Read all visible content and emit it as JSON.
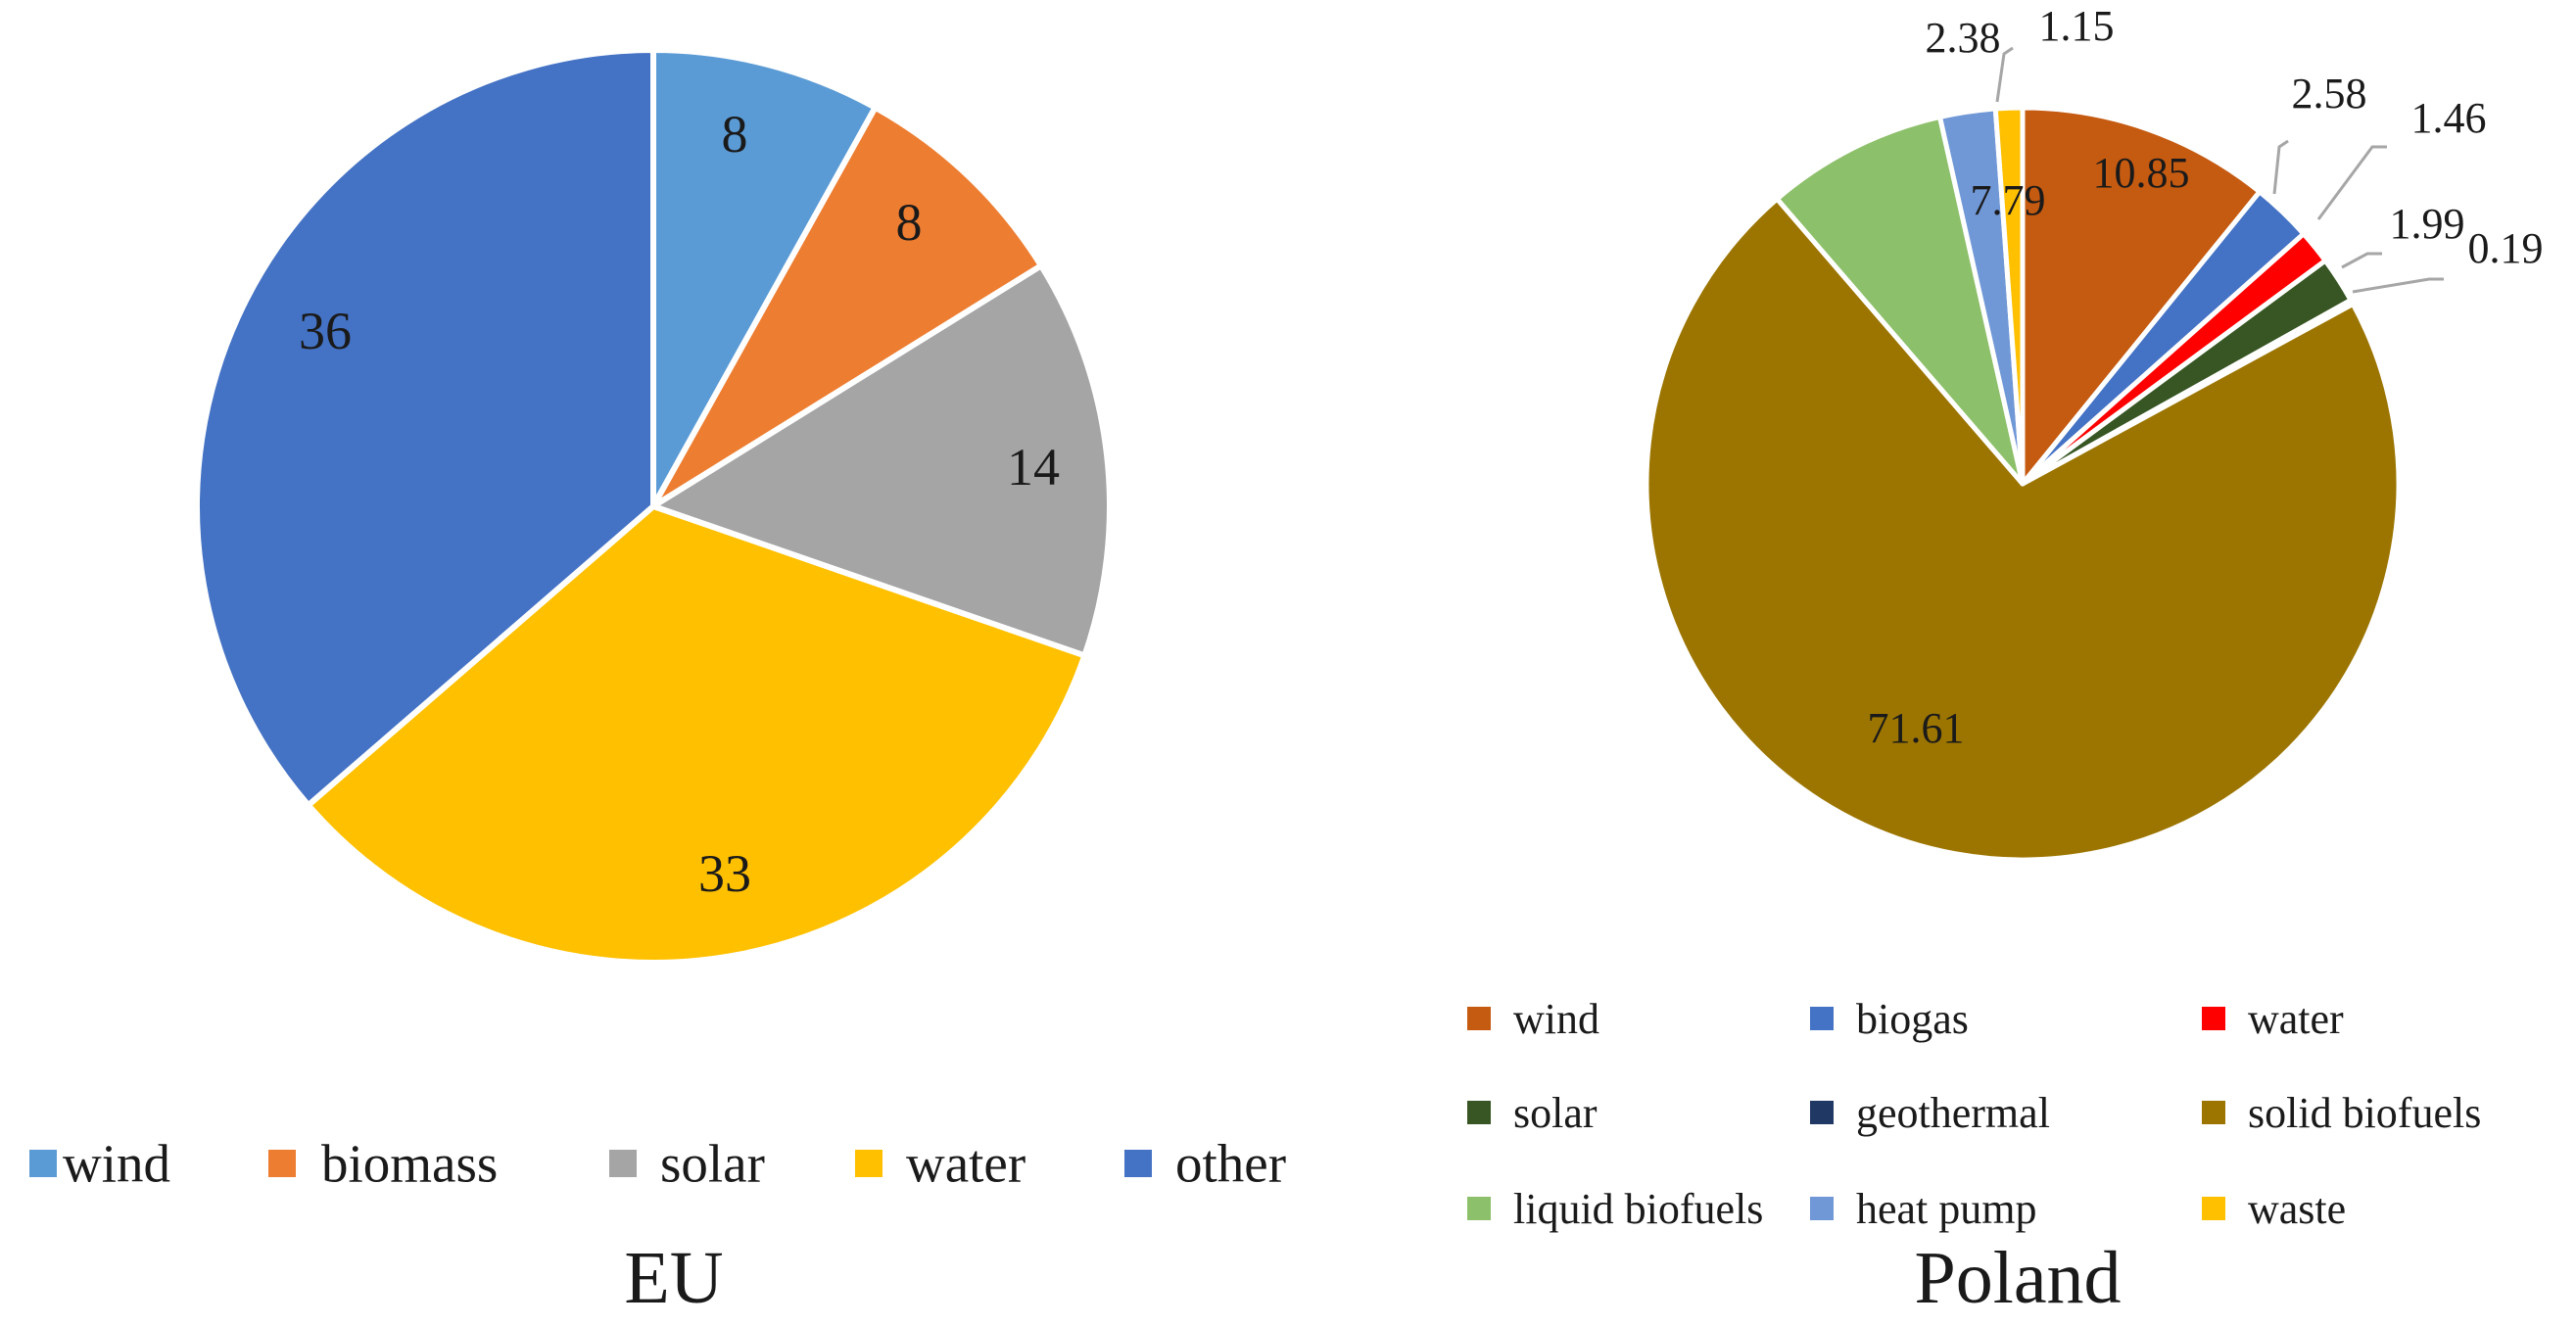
{
  "chart_data": [
    {
      "type": "pie",
      "title": "EU",
      "categories": [
        "wind",
        "biomass",
        "solar",
        "water",
        "other"
      ],
      "values": [
        8,
        8,
        14,
        33,
        36
      ],
      "colors": [
        "#5B9BD5",
        "#ED7D31",
        "#A5A5A5",
        "#FFC000",
        "#4472C4"
      ],
      "legend_position": "bottom"
    },
    {
      "type": "pie",
      "title": "Poland",
      "categories": [
        "wind",
        "biogas",
        "water",
        "solar",
        "geothermal",
        "solid biofuels",
        "liquid biofuels",
        "heat pump",
        "waste"
      ],
      "values": [
        10.85,
        2.58,
        1.46,
        1.99,
        0.19,
        71.61,
        7.79,
        2.38,
        1.15
      ],
      "colors": [
        "#C55A11",
        "#4472C4",
        "#FF0000",
        "#375623",
        "#203864",
        "#9C7500",
        "#8DC06A",
        "#7097D6",
        "#FFC000"
      ],
      "legend_position": "bottom"
    }
  ]
}
